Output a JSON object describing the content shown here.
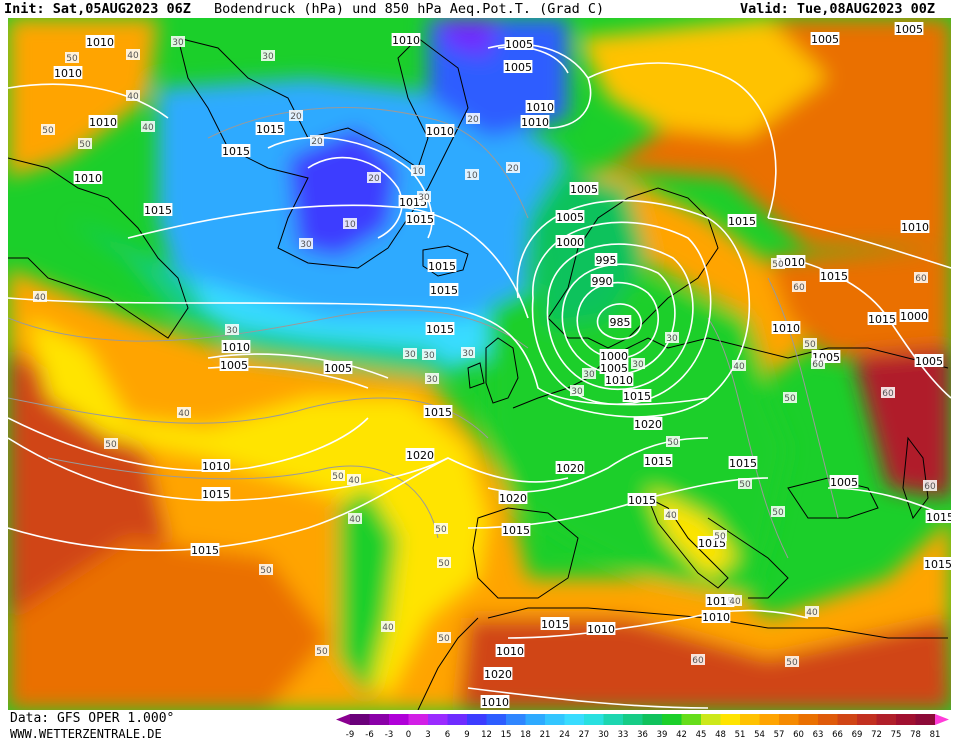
{
  "header": {
    "init": "Init: Sat,05AUG2023 06Z",
    "title": "Bodendruck (hPa) und 850 hPa Aeq.Pot.T. (Grad C)",
    "valid": "Valid: Tue,08AUG2023 00Z"
  },
  "footer": {
    "source": "Data: GFS OPER 1.000°",
    "site": "WWW.WETTERZENTRALE.DE"
  },
  "legend": {
    "ticks": [
      "-9",
      "-6",
      "-3",
      "0",
      "3",
      "6",
      "9",
      "12",
      "15",
      "18",
      "21",
      "24",
      "27",
      "30",
      "33",
      "36",
      "39",
      "42",
      "45",
      "48",
      "51",
      "54",
      "57",
      "60",
      "63",
      "66",
      "69",
      "72",
      "75",
      "78",
      "81"
    ],
    "colors": [
      "#6a007a",
      "#8a00a8",
      "#b000d8",
      "#d21fe6",
      "#9b2bff",
      "#6f2cff",
      "#3c3cff",
      "#2d5dff",
      "#2f86ff",
      "#2eaaff",
      "#33c6ff",
      "#39dcff",
      "#29e0e0",
      "#1dd6b0",
      "#16cc86",
      "#10c25c",
      "#1bcf2a",
      "#66dd1a",
      "#cce81a",
      "#ffe400",
      "#ffc200",
      "#ffa400",
      "#f58a00",
      "#ea7000",
      "#df5a0a",
      "#d04515",
      "#c23020",
      "#b01f2a",
      "#a01030",
      "#8c0a38"
    ],
    "left_arrow_color": "#8a0090",
    "right_arrow_color": "#ff3cd8"
  },
  "map_colors": {
    "ocean_cool": "#2eaaff",
    "cold_core": "#3c3cff",
    "deep_cold": "#6f2cff",
    "cyan": "#39dcff",
    "teal": "#16cc86",
    "green": "#1bcf2a",
    "yellowgreen": "#cce81a",
    "yellow": "#ffe400",
    "orange": "#ffa400",
    "darkorange": "#ea7000",
    "red": "#d04515",
    "darkred": "#b01f2a"
  },
  "isobar_labels": [
    "1010",
    "1010",
    "1010",
    "1010",
    "1015",
    "1015",
    "1010",
    "1015",
    "1015",
    "1015",
    "1015",
    "1015",
    "1015",
    "1010",
    "1005",
    "1005",
    "1010",
    "1015",
    "1020",
    "1015",
    "1020",
    "1020",
    "1015",
    "1010",
    "1010",
    "1000",
    "1005",
    "1015",
    "1005",
    "1005",
    "995",
    "990",
    "985",
    "1000",
    "1005",
    "1010",
    "1015",
    "1020",
    "1015",
    "1015",
    "1015",
    "1015",
    "1015",
    "1010",
    "1010",
    "1005",
    "1005",
    "1005",
    "1010",
    "1010",
    "1015",
    "1005",
    "1000",
    "1010",
    "1005",
    "1015",
    "1015",
    "1015",
    "1015",
    "1020",
    "1010",
    "1010",
    "1005",
    "1015",
    "1010"
  ],
  "theta_labels": [
    "10",
    "20",
    "20",
    "30",
    "30",
    "30",
    "40",
    "40",
    "40",
    "40",
    "50",
    "50",
    "50",
    "50",
    "50",
    "60",
    "60",
    "50",
    "50",
    "50",
    "40",
    "40",
    "40",
    "40",
    "30",
    "30",
    "30",
    "30",
    "30",
    "30",
    "20",
    "20",
    "20",
    "10",
    "10",
    "40",
    "40",
    "50",
    "50",
    "50",
    "50",
    "60",
    "50",
    "40",
    "40",
    "30",
    "30",
    "30",
    "30",
    "50",
    "50",
    "50",
    "50",
    "50",
    "60",
    "60",
    "60"
  ]
}
